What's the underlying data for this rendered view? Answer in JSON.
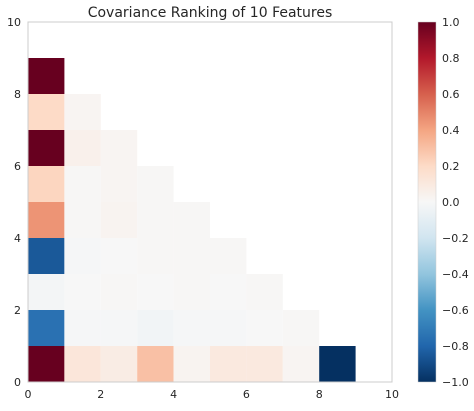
{
  "chart_data": {
    "type": "heatmap",
    "title": "Covariance Ranking of 10 Features",
    "xlabel": "",
    "ylabel": "",
    "xlim": [
      0,
      10
    ],
    "ylim": [
      0,
      10
    ],
    "x_ticks": [
      "0",
      "2",
      "4",
      "6",
      "8",
      "10"
    ],
    "y_ticks": [
      "0",
      "2",
      "4",
      "6",
      "8",
      "10"
    ],
    "grid": false,
    "colorbar": {
      "vmin": -1.0,
      "vmax": 1.0,
      "ticks": [
        "1.0",
        "0.8",
        "0.6",
        "0.4",
        "0.2",
        "0.0",
        "−0.2",
        "−0.4",
        "−0.6",
        "−0.8",
        "−1.0"
      ],
      "colormap": "RdBu_r",
      "position": "right"
    },
    "cells": [
      {
        "col": 0,
        "row": 0,
        "value": 1.0
      },
      {
        "col": 1,
        "row": 0,
        "value": 0.12
      },
      {
        "col": 2,
        "row": 0,
        "value": 0.08
      },
      {
        "col": 3,
        "row": 0,
        "value": 0.3
      },
      {
        "col": 4,
        "row": 0,
        "value": 0.03
      },
      {
        "col": 5,
        "row": 0,
        "value": 0.1
      },
      {
        "col": 6,
        "row": 0,
        "value": 0.1
      },
      {
        "col": 7,
        "row": 0,
        "value": 0.02
      },
      {
        "col": 8,
        "row": 0,
        "value": -1.0
      },
      {
        "col": 0,
        "row": 1,
        "value": -0.75
      },
      {
        "col": 1,
        "row": 1,
        "value": -0.01
      },
      {
        "col": 2,
        "row": 1,
        "value": -0.01
      },
      {
        "col": 3,
        "row": 1,
        "value": -0.03
      },
      {
        "col": 4,
        "row": 1,
        "value": -0.01
      },
      {
        "col": 5,
        "row": 1,
        "value": -0.01
      },
      {
        "col": 6,
        "row": 1,
        "value": 0.0
      },
      {
        "col": 7,
        "row": 1,
        "value": 0.01
      },
      {
        "col": 0,
        "row": 2,
        "value": -0.02
      },
      {
        "col": 1,
        "row": 2,
        "value": 0.0
      },
      {
        "col": 2,
        "row": 2,
        "value": 0.01
      },
      {
        "col": 3,
        "row": 2,
        "value": 0.0
      },
      {
        "col": 4,
        "row": 2,
        "value": 0.01
      },
      {
        "col": 5,
        "row": 2,
        "value": 0.0
      },
      {
        "col": 6,
        "row": 2,
        "value": 0.01
      },
      {
        "col": 0,
        "row": 3,
        "value": -0.85
      },
      {
        "col": 1,
        "row": 3,
        "value": -0.01
      },
      {
        "col": 2,
        "row": 3,
        "value": 0.0
      },
      {
        "col": 3,
        "row": 3,
        "value": 0.01
      },
      {
        "col": 4,
        "row": 3,
        "value": 0.01
      },
      {
        "col": 5,
        "row": 3,
        "value": 0.01
      },
      {
        "col": 0,
        "row": 4,
        "value": 0.45
      },
      {
        "col": 1,
        "row": 4,
        "value": 0.01
      },
      {
        "col": 2,
        "row": 4,
        "value": 0.03
      },
      {
        "col": 3,
        "row": 4,
        "value": 0.01
      },
      {
        "col": 4,
        "row": 4,
        "value": 0.01
      },
      {
        "col": 0,
        "row": 5,
        "value": 0.22
      },
      {
        "col": 1,
        "row": 5,
        "value": 0.01
      },
      {
        "col": 2,
        "row": 5,
        "value": 0.02
      },
      {
        "col": 3,
        "row": 5,
        "value": 0.01
      },
      {
        "col": 0,
        "row": 6,
        "value": 1.0
      },
      {
        "col": 1,
        "row": 6,
        "value": 0.05
      },
      {
        "col": 2,
        "row": 6,
        "value": 0.02
      },
      {
        "col": 0,
        "row": 7,
        "value": 0.2
      },
      {
        "col": 1,
        "row": 7,
        "value": 0.02
      },
      {
        "col": 0,
        "row": 8,
        "value": 1.0
      }
    ]
  }
}
